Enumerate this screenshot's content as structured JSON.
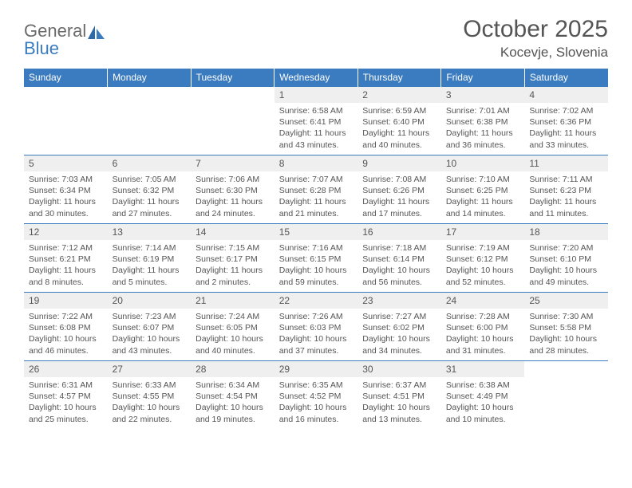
{
  "brand": {
    "line1": "General",
    "line2": "Blue"
  },
  "title": "October 2025",
  "location": "Kocevje, Slovenia",
  "colors": {
    "header_bg": "#3b7bbf",
    "header_text": "#ffffff",
    "daynum_bg": "#efefef",
    "text": "#555555",
    "rule": "#3b7bbf",
    "page_bg": "#ffffff"
  },
  "typography": {
    "title_fontsize": 30,
    "location_fontsize": 17,
    "header_fontsize": 12,
    "daynum_fontsize": 12,
    "body_fontsize": 10.5,
    "font_family": "Arial"
  },
  "day_headers": [
    "Sunday",
    "Monday",
    "Tuesday",
    "Wednesday",
    "Thursday",
    "Friday",
    "Saturday"
  ],
  "weeks": [
    [
      {
        "n": "",
        "empty": true
      },
      {
        "n": "",
        "empty": true
      },
      {
        "n": "",
        "empty": true
      },
      {
        "n": "1",
        "sunrise": "6:58 AM",
        "sunset": "6:41 PM",
        "daylight": "11 hours and 43 minutes."
      },
      {
        "n": "2",
        "sunrise": "6:59 AM",
        "sunset": "6:40 PM",
        "daylight": "11 hours and 40 minutes."
      },
      {
        "n": "3",
        "sunrise": "7:01 AM",
        "sunset": "6:38 PM",
        "daylight": "11 hours and 36 minutes."
      },
      {
        "n": "4",
        "sunrise": "7:02 AM",
        "sunset": "6:36 PM",
        "daylight": "11 hours and 33 minutes."
      }
    ],
    [
      {
        "n": "5",
        "sunrise": "7:03 AM",
        "sunset": "6:34 PM",
        "daylight": "11 hours and 30 minutes."
      },
      {
        "n": "6",
        "sunrise": "7:05 AM",
        "sunset": "6:32 PM",
        "daylight": "11 hours and 27 minutes."
      },
      {
        "n": "7",
        "sunrise": "7:06 AM",
        "sunset": "6:30 PM",
        "daylight": "11 hours and 24 minutes."
      },
      {
        "n": "8",
        "sunrise": "7:07 AM",
        "sunset": "6:28 PM",
        "daylight": "11 hours and 21 minutes."
      },
      {
        "n": "9",
        "sunrise": "7:08 AM",
        "sunset": "6:26 PM",
        "daylight": "11 hours and 17 minutes."
      },
      {
        "n": "10",
        "sunrise": "7:10 AM",
        "sunset": "6:25 PM",
        "daylight": "11 hours and 14 minutes."
      },
      {
        "n": "11",
        "sunrise": "7:11 AM",
        "sunset": "6:23 PM",
        "daylight": "11 hours and 11 minutes."
      }
    ],
    [
      {
        "n": "12",
        "sunrise": "7:12 AM",
        "sunset": "6:21 PM",
        "daylight": "11 hours and 8 minutes."
      },
      {
        "n": "13",
        "sunrise": "7:14 AM",
        "sunset": "6:19 PM",
        "daylight": "11 hours and 5 minutes."
      },
      {
        "n": "14",
        "sunrise": "7:15 AM",
        "sunset": "6:17 PM",
        "daylight": "11 hours and 2 minutes."
      },
      {
        "n": "15",
        "sunrise": "7:16 AM",
        "sunset": "6:15 PM",
        "daylight": "10 hours and 59 minutes."
      },
      {
        "n": "16",
        "sunrise": "7:18 AM",
        "sunset": "6:14 PM",
        "daylight": "10 hours and 56 minutes."
      },
      {
        "n": "17",
        "sunrise": "7:19 AM",
        "sunset": "6:12 PM",
        "daylight": "10 hours and 52 minutes."
      },
      {
        "n": "18",
        "sunrise": "7:20 AM",
        "sunset": "6:10 PM",
        "daylight": "10 hours and 49 minutes."
      }
    ],
    [
      {
        "n": "19",
        "sunrise": "7:22 AM",
        "sunset": "6:08 PM",
        "daylight": "10 hours and 46 minutes."
      },
      {
        "n": "20",
        "sunrise": "7:23 AM",
        "sunset": "6:07 PM",
        "daylight": "10 hours and 43 minutes."
      },
      {
        "n": "21",
        "sunrise": "7:24 AM",
        "sunset": "6:05 PM",
        "daylight": "10 hours and 40 minutes."
      },
      {
        "n": "22",
        "sunrise": "7:26 AM",
        "sunset": "6:03 PM",
        "daylight": "10 hours and 37 minutes."
      },
      {
        "n": "23",
        "sunrise": "7:27 AM",
        "sunset": "6:02 PM",
        "daylight": "10 hours and 34 minutes."
      },
      {
        "n": "24",
        "sunrise": "7:28 AM",
        "sunset": "6:00 PM",
        "daylight": "10 hours and 31 minutes."
      },
      {
        "n": "25",
        "sunrise": "7:30 AM",
        "sunset": "5:58 PM",
        "daylight": "10 hours and 28 minutes."
      }
    ],
    [
      {
        "n": "26",
        "sunrise": "6:31 AM",
        "sunset": "4:57 PM",
        "daylight": "10 hours and 25 minutes."
      },
      {
        "n": "27",
        "sunrise": "6:33 AM",
        "sunset": "4:55 PM",
        "daylight": "10 hours and 22 minutes."
      },
      {
        "n": "28",
        "sunrise": "6:34 AM",
        "sunset": "4:54 PM",
        "daylight": "10 hours and 19 minutes."
      },
      {
        "n": "29",
        "sunrise": "6:35 AM",
        "sunset": "4:52 PM",
        "daylight": "10 hours and 16 minutes."
      },
      {
        "n": "30",
        "sunrise": "6:37 AM",
        "sunset": "4:51 PM",
        "daylight": "10 hours and 13 minutes."
      },
      {
        "n": "31",
        "sunrise": "6:38 AM",
        "sunset": "4:49 PM",
        "daylight": "10 hours and 10 minutes."
      },
      {
        "n": "",
        "empty": true
      }
    ]
  ],
  "labels": {
    "sunrise_prefix": "Sunrise: ",
    "sunset_prefix": "Sunset: ",
    "daylight_prefix": "Daylight: "
  }
}
